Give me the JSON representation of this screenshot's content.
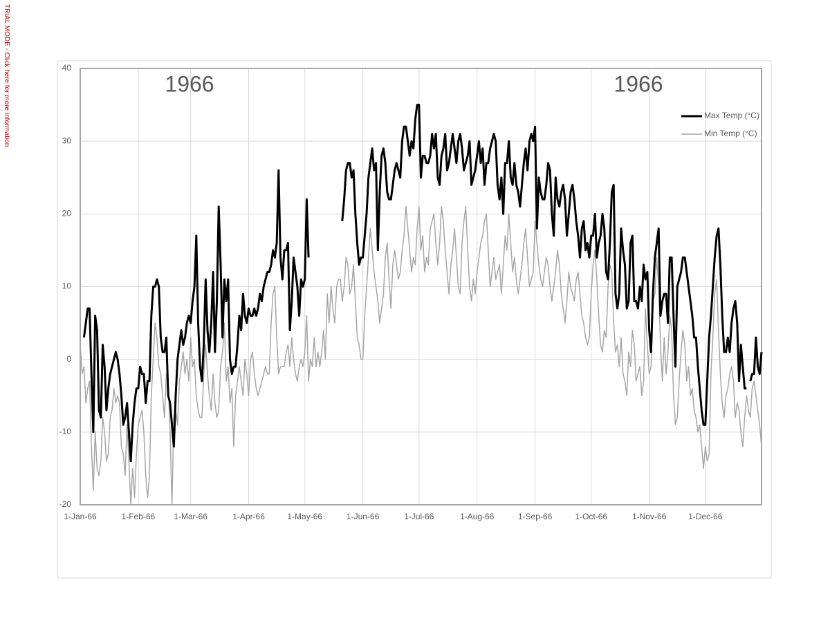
{
  "trial_banner": "TRIAL MODE - Click here for more information",
  "chart_data": {
    "type": "line",
    "annotations": [
      "1966",
      "1966"
    ],
    "xlim": [
      0,
      364
    ],
    "xticks": [
      {
        "value": 0,
        "label": "1-Jan-66"
      },
      {
        "value": 31,
        "label": "1-Feb-66"
      },
      {
        "value": 59,
        "label": "1-Mar-66"
      },
      {
        "value": 90,
        "label": "1-Apr-66"
      },
      {
        "value": 120,
        "label": "1-May-66"
      },
      {
        "value": 151,
        "label": "1-Jun-66"
      },
      {
        "value": 181,
        "label": "1-Jul-66"
      },
      {
        "value": 212,
        "label": "1-Aug-66"
      },
      {
        "value": 243,
        "label": "1-Sep-66"
      },
      {
        "value": 273,
        "label": "1-Oct-66"
      },
      {
        "value": 304,
        "label": "1-Nov-66"
      },
      {
        "value": 334,
        "label": "1-Dec-66"
      }
    ],
    "ylim": [
      -20,
      40
    ],
    "yticks": [
      -20,
      -10,
      0,
      10,
      20,
      30,
      40
    ],
    "grid": true,
    "legend": "upper right",
    "series": [
      {
        "name": "Max Temp (°C)",
        "color": "#000000",
        "values": [
          null,
          null,
          3,
          5,
          7,
          7,
          -2,
          -10,
          6,
          4,
          -7,
          -8,
          2,
          -1,
          -7,
          -4,
          -2,
          -1,
          0,
          1,
          0,
          -2,
          -5,
          -9,
          -8,
          -6,
          -10,
          -14,
          -9,
          -6,
          -4,
          -4,
          -1,
          -2,
          -2,
          -6,
          -3,
          -3,
          6,
          10,
          10,
          11,
          10,
          3,
          1,
          1,
          3,
          -5,
          -6,
          -9,
          -12,
          -5,
          0,
          2,
          4,
          2,
          3,
          5,
          6,
          5,
          8,
          10,
          17,
          5,
          -1,
          -3,
          2,
          11,
          4,
          1,
          5,
          12,
          1,
          8,
          21,
          13,
          3,
          11,
          8,
          11,
          0,
          -2,
          -1,
          -1,
          2,
          6,
          4,
          9,
          6,
          5,
          7,
          6,
          6,
          7,
          6,
          7,
          9,
          8,
          10,
          11,
          12,
          12,
          13,
          15,
          14,
          16,
          26,
          14,
          11,
          15,
          15,
          16,
          4,
          8,
          14,
          12,
          10,
          6,
          11,
          10,
          11,
          22,
          14,
          null,
          null,
          null,
          null,
          null,
          null,
          null,
          null,
          null,
          null,
          null,
          null,
          null,
          null,
          null,
          null,
          null,
          19,
          22,
          26,
          27,
          27,
          25,
          26,
          20,
          16,
          13,
          14,
          14,
          17,
          20,
          25,
          27,
          29,
          26,
          27,
          15,
          23,
          28,
          29,
          27,
          23,
          22,
          22,
          24,
          26,
          27,
          26,
          25,
          30,
          32,
          32,
          30,
          28,
          30,
          29,
          33,
          35,
          35,
          25,
          28,
          28,
          27,
          27,
          28,
          31,
          29,
          31,
          25,
          24,
          28,
          29,
          31,
          26,
          27,
          29,
          31,
          29,
          27,
          30,
          31,
          29,
          26,
          27,
          28,
          30,
          24,
          25,
          26,
          28,
          30,
          27,
          29,
          24,
          27,
          27,
          29,
          30,
          31,
          30,
          24,
          22,
          25,
          20,
          27,
          27,
          30,
          25,
          24,
          27,
          24,
          23,
          21,
          24,
          27,
          29,
          26,
          30,
          31,
          30,
          32,
          18,
          25,
          23,
          22,
          22,
          24,
          27,
          26,
          20,
          17,
          25,
          22,
          21,
          23,
          24,
          22,
          17,
          20,
          23,
          24,
          22,
          19,
          17,
          14,
          18,
          19,
          15,
          16,
          14,
          17,
          17,
          20,
          14,
          16,
          17,
          20,
          18,
          12,
          11,
          16,
          23,
          24,
          9,
          7,
          9,
          18,
          15,
          13,
          7,
          8,
          16,
          17,
          8,
          8,
          7,
          10,
          8,
          13,
          11,
          12,
          4,
          1,
          9,
          14,
          16,
          18,
          6,
          8,
          9,
          9,
          5,
          14,
          14,
          6,
          -1,
          10,
          11,
          12,
          14,
          14,
          12,
          10,
          8,
          6,
          3,
          3,
          -1,
          -4,
          -7,
          -9,
          -9,
          -3,
          3,
          6,
          10,
          14,
          17,
          18,
          13,
          6,
          1,
          1,
          3,
          1,
          5,
          7,
          8,
          5,
          -3,
          2,
          -1,
          -4,
          -4,
          null,
          -3,
          -2,
          -2,
          3,
          -1,
          -2,
          1
        ]
      },
      {
        "name": "Min Temp (°C)",
        "color": "#a6a6a6",
        "values": [
          2,
          -2,
          -1,
          -6,
          -4,
          -3,
          -12,
          -18,
          -10,
          -15,
          -16,
          -14,
          -8,
          -10,
          -14,
          -13,
          -8,
          -7,
          -4,
          -6,
          -5,
          -6,
          -12,
          -13,
          -16,
          -9,
          -14,
          -20,
          -15,
          -19,
          -13,
          -9,
          -8,
          -7,
          -10,
          -16,
          -19,
          -16,
          -5,
          0,
          5,
          3,
          -1,
          -2,
          -5,
          -8,
          -2,
          -3,
          -10,
          -20,
          -8,
          -7,
          -9,
          -3,
          -1,
          1,
          -2,
          0,
          -3,
          3,
          -1,
          0,
          -5,
          -7,
          -8,
          -8,
          -2,
          2,
          -2,
          -5,
          -7,
          -2,
          -6,
          -8,
          -7,
          -1,
          1,
          5,
          -3,
          -1,
          -6,
          -4,
          -12,
          -5,
          -3,
          -1,
          -3,
          -5,
          0,
          -2,
          -5,
          0,
          1,
          -2,
          -4,
          -5,
          -4,
          -3,
          -2,
          -1,
          -2,
          -2,
          5,
          9,
          10,
          3,
          -2,
          -1,
          -1,
          -1,
          1,
          2,
          -1,
          3,
          0,
          -2,
          -3,
          -1,
          0,
          -1,
          1,
          6,
          -3,
          0,
          -1,
          3,
          -1,
          1,
          -1,
          1,
          4,
          0,
          9,
          5,
          10,
          7,
          5,
          10,
          11,
          11,
          8,
          10,
          14,
          13,
          9,
          10,
          13,
          8,
          3,
          2,
          0,
          0,
          6,
          10,
          14,
          18,
          15,
          12,
          10,
          8,
          5,
          7,
          9,
          14,
          16,
          11,
          7,
          13,
          15,
          13,
          11,
          12,
          15,
          17,
          21,
          18,
          15,
          12,
          14,
          13,
          18,
          21,
          15,
          17,
          12,
          14,
          13,
          18,
          19,
          20,
          16,
          13,
          16,
          21,
          19,
          15,
          12,
          9,
          13,
          15,
          18,
          14,
          10,
          9,
          16,
          19,
          21,
          15,
          10,
          8,
          11,
          9,
          12,
          14,
          16,
          17,
          19,
          20,
          15,
          10,
          12,
          14,
          11,
          12,
          13,
          9,
          13,
          17,
          15,
          20,
          16,
          12,
          14,
          11,
          9,
          11,
          13,
          16,
          18,
          14,
          10,
          11,
          12,
          19,
          16,
          13,
          11,
          10,
          12,
          14,
          13,
          10,
          8,
          10,
          12,
          15,
          13,
          9,
          7,
          5,
          8,
          12,
          10,
          9,
          8,
          11,
          12,
          9,
          6,
          5,
          3,
          2,
          3,
          9,
          13,
          15,
          11,
          6,
          2,
          1,
          4,
          3,
          10,
          13,
          12,
          5,
          1,
          2,
          -1,
          3,
          -2,
          -3,
          -5,
          1,
          -1,
          4,
          2,
          -3,
          -2,
          -1,
          -5,
          -3,
          7,
          2,
          -2,
          -1,
          8,
          9,
          14,
          10,
          2,
          -3,
          3,
          -2,
          1,
          6,
          4,
          -5,
          -9,
          -8,
          -3,
          1,
          4,
          2,
          -3,
          -1,
          -5,
          -4,
          -7,
          -8,
          -10,
          -9,
          -12,
          -15,
          -12,
          -14,
          -13,
          -2,
          3,
          9,
          11,
          4,
          -2,
          -6,
          -8,
          -5,
          -4,
          -2,
          -1,
          -3,
          -8,
          -6,
          -7,
          -10,
          -12,
          -8,
          -5,
          -7,
          -8,
          -4,
          -3,
          -5,
          -7,
          -9,
          -12
        ]
      }
    ]
  }
}
